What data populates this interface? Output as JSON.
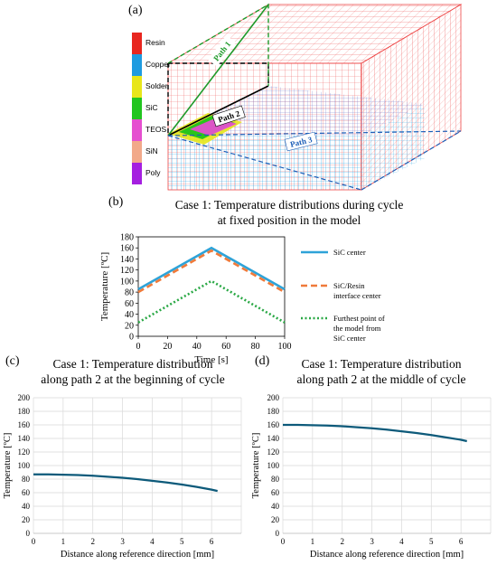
{
  "panels": {
    "a": "(a)",
    "b": "(b)",
    "c": "(c)",
    "d": "(d)"
  },
  "materials": {
    "items": [
      {
        "name": "Resin",
        "color": "#e8261f"
      },
      {
        "name": "Copper",
        "color": "#1e9be0"
      },
      {
        "name": "Solder",
        "color": "#e8e61a"
      },
      {
        "name": "SiC",
        "color": "#22c51f"
      },
      {
        "name": "TEOS",
        "color": "#e54fd0"
      },
      {
        "name": "SiN",
        "color": "#f2a98a"
      },
      {
        "name": "Poly",
        "color": "#a51fe0"
      }
    ]
  },
  "paths": {
    "path1": "Path 1",
    "path2": "Path 2",
    "path3": "Path 3"
  },
  "chart_data": [
    {
      "id": "b",
      "type": "line",
      "title": "Case 1: Temperature distributions during cycle at fixed position in the model",
      "title_line1": "Case 1: Temperature distributions during cycle",
      "title_line2": "at fixed position in the model",
      "xlabel": "Time [s]",
      "ylabel": "Temperature [ºC]",
      "xlim": [
        0,
        100
      ],
      "ylim": [
        0,
        180
      ],
      "xticks": [
        0,
        20,
        40,
        60,
        80,
        100
      ],
      "yticks": [
        0,
        20,
        40,
        60,
        80,
        100,
        120,
        140,
        160,
        180
      ],
      "grid": false,
      "legend_placement": "right",
      "series": [
        {
          "name": "SiC center",
          "x": [
            0,
            50,
            100
          ],
          "y": [
            85,
            160,
            85
          ],
          "color": "#2ea3d8",
          "dash": "solid"
        },
        {
          "name": "SiC/Resin interface center",
          "x": [
            0,
            50,
            100
          ],
          "y": [
            80,
            155,
            80
          ],
          "color": "#ef7a3a",
          "dash": "dashed"
        },
        {
          "name": "Furthest point of the model from SiC center",
          "x": [
            0,
            50,
            100
          ],
          "y": [
            25,
            100,
            25
          ],
          "color": "#2aa845",
          "dash": "dotted"
        }
      ]
    },
    {
      "id": "c",
      "type": "line",
      "title_line1": "Case 1: Temperature distribution",
      "title_line2": "along path 2 at the beginning of cycle",
      "xlabel": "Distance along reference direction [mm]",
      "ylabel": "Temperature [ºC]",
      "xlim": [
        0,
        7
      ],
      "ylim": [
        0,
        200
      ],
      "xticks": [
        0,
        1,
        2,
        3,
        4,
        5,
        6
      ],
      "yticks": [
        0,
        20,
        40,
        60,
        80,
        100,
        120,
        140,
        160,
        180,
        200
      ],
      "grid": true,
      "series": [
        {
          "name": "",
          "x": [
            0,
            0.5,
            1,
            1.5,
            2,
            2.5,
            3,
            3.5,
            4,
            4.5,
            5,
            5.5,
            6,
            6.2
          ],
          "y": [
            87,
            87,
            86.5,
            86,
            85,
            83.5,
            82,
            80,
            77.5,
            75,
            72,
            68.5,
            64.5,
            62.5
          ],
          "color": "#0d5a7a"
        }
      ]
    },
    {
      "id": "d",
      "type": "line",
      "title_line1": "Case 1: Temperature distribution",
      "title_line2": "along path 2 at the middle of cycle",
      "xlabel": "Distance along reference direction [mm]",
      "ylabel": "Temperature [ºC]",
      "xlim": [
        0,
        7
      ],
      "ylim": [
        0,
        200
      ],
      "xticks": [
        0,
        1,
        2,
        3,
        4,
        5,
        6
      ],
      "yticks": [
        0,
        20,
        40,
        60,
        80,
        100,
        120,
        140,
        160,
        180,
        200
      ],
      "grid": true,
      "series": [
        {
          "name": "",
          "x": [
            0,
            0.5,
            1,
            1.5,
            2,
            2.5,
            3,
            3.5,
            4,
            4.5,
            5,
            5.5,
            6,
            6.2
          ],
          "y": [
            160,
            160,
            159.5,
            159,
            158,
            156.5,
            155,
            153,
            150.5,
            148,
            145,
            141.5,
            138,
            136
          ],
          "color": "#0d5a7a"
        }
      ]
    }
  ]
}
